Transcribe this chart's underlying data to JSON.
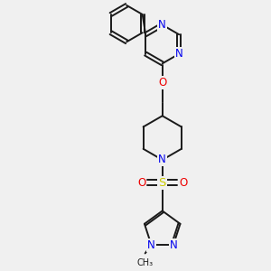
{
  "bg_color": "#f0f0f0",
  "bond_color": "#1a1a1a",
  "N_color": "#0000ee",
  "O_color": "#ee0000",
  "S_color": "#cccc00",
  "line_width": 1.4,
  "dbo": 0.07,
  "font_size": 8.5,
  "fig_w": 3.0,
  "fig_h": 3.0,
  "dpi": 100,
  "xlim": [
    0,
    10
  ],
  "ylim": [
    0,
    10
  ]
}
